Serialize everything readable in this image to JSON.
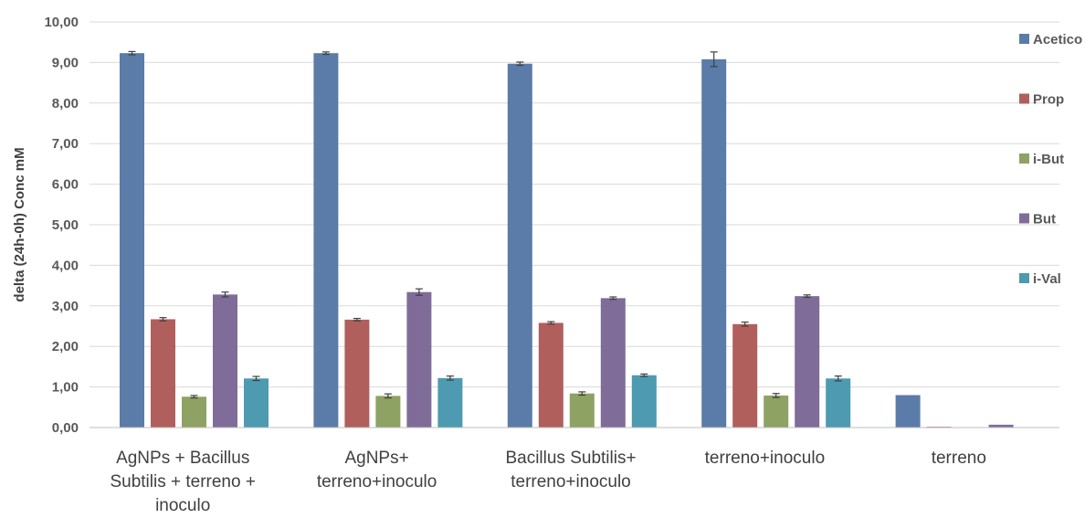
{
  "chart_data": {
    "type": "bar",
    "ylabel": "delta (24h-0h) Conc mM",
    "ylim": [
      0,
      10
    ],
    "yticks": [
      "0,00",
      "1,00",
      "2,00",
      "3,00",
      "4,00",
      "5,00",
      "6,00",
      "7,00",
      "8,00",
      "9,00",
      "10,00"
    ],
    "grid": true,
    "legend_position": "right",
    "categories": [
      [
        "AgNPs + Bacillus",
        "Subtilis + terreno +",
        "inoculo"
      ],
      [
        "AgNPs+",
        "terreno+inoculo"
      ],
      [
        "Bacillus Subtilis+",
        "terreno+inoculo"
      ],
      [
        "terreno+inoculo"
      ],
      [
        "terreno"
      ]
    ],
    "series": [
      {
        "name": "Acetico",
        "color": "#5b7ba8",
        "values": [
          9.23,
          9.23,
          8.97,
          9.08,
          0.8
        ],
        "errors": [
          0.04,
          0.03,
          0.04,
          0.18,
          0
        ]
      },
      {
        "name": "Prop",
        "color": "#b05f5c",
        "values": [
          2.67,
          2.66,
          2.58,
          2.55,
          0.02
        ],
        "errors": [
          0.04,
          0.03,
          0.03,
          0.05,
          0
        ]
      },
      {
        "name": "i-But",
        "color": "#8ea263",
        "values": [
          0.76,
          0.78,
          0.84,
          0.79,
          0
        ],
        "errors": [
          0.03,
          0.05,
          0.04,
          0.05,
          0
        ]
      },
      {
        "name": "But",
        "color": "#7f6c99",
        "values": [
          3.28,
          3.34,
          3.19,
          3.24,
          0.07
        ],
        "errors": [
          0.06,
          0.08,
          0.03,
          0.03,
          0
        ]
      },
      {
        "name": "i-Val",
        "color": "#4e9ab0",
        "values": [
          1.21,
          1.22,
          1.29,
          1.21,
          0
        ],
        "errors": [
          0.05,
          0.05,
          0.03,
          0.06,
          0
        ]
      }
    ]
  }
}
